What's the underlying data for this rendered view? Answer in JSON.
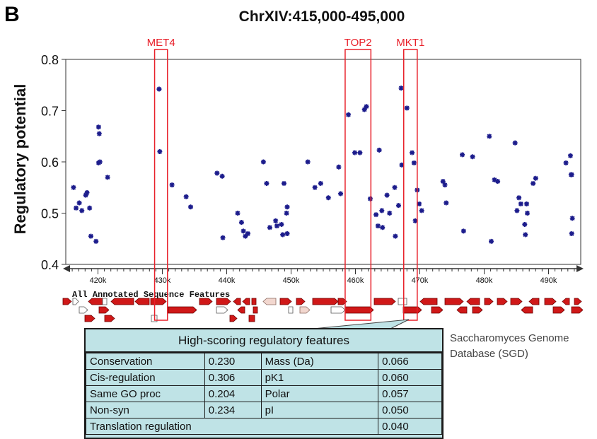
{
  "panel_label": "B",
  "sgd_label_lines": [
    "Saccharomyces Genome",
    "Database (SGD)"
  ],
  "feature_table": {
    "title": "High-scoring regulatory features",
    "rows": [
      [
        "Conservation",
        "0.230",
        "Mass (Da)",
        "0.066"
      ],
      [
        "Cis-regulation",
        "0.306",
        "pK1",
        "0.060"
      ],
      [
        "Same GO proc",
        "0.204",
        "Polar",
        "0.057"
      ],
      [
        "Non-syn",
        "0.234",
        "pI",
        "0.050"
      ]
    ],
    "last_row": {
      "label": "Translation regulation",
      "value": "0.040"
    }
  },
  "colors": {
    "points": "#1c1c8c",
    "highlight": "#e8202a",
    "feature_fill": "#d01818",
    "table_bg": "#bfe3e6"
  },
  "chart_data": {
    "type": "scatter",
    "title": "ChrXIV:415,000-495,000",
    "ylabel": "Regulatory potential",
    "xlabel": "",
    "xlim": [
      415000,
      495000
    ],
    "ylim": [
      0.4,
      0.8
    ],
    "yticks": [
      0.4,
      0.5,
      0.6,
      0.7,
      0.8
    ],
    "ytick_labels": [
      "0.4",
      "0.5",
      "0.6",
      "0.7",
      "0.8"
    ],
    "xticks": [
      420000,
      430000,
      440000,
      450000,
      460000,
      470000,
      480000,
      490000
    ],
    "xtick_labels": [
      "420k",
      "430k",
      "440k",
      "450k",
      "460k",
      "470k",
      "480k",
      "490k"
    ],
    "grid": false,
    "legend": "none",
    "track_title": "All Annotated Sequence Features",
    "highlighted_genes": [
      {
        "name": "MET4",
        "start": 428800,
        "end": 430800
      },
      {
        "name": "TOP2",
        "start": 458400,
        "end": 462400
      },
      {
        "name": "MKT1",
        "start": 467500,
        "end": 469600
      }
    ],
    "points": [
      [
        416200,
        0.55
      ],
      [
        416600,
        0.51
      ],
      [
        417100,
        0.52
      ],
      [
        417500,
        0.505
      ],
      [
        418100,
        0.535
      ],
      [
        418300,
        0.54
      ],
      [
        418700,
        0.51
      ],
      [
        418900,
        0.455
      ],
      [
        419700,
        0.445
      ],
      [
        420100,
        0.668
      ],
      [
        420200,
        0.655
      ],
      [
        420300,
        0.6
      ],
      [
        420100,
        0.598
      ],
      [
        421500,
        0.57
      ],
      [
        429500,
        0.742
      ],
      [
        429600,
        0.62
      ],
      [
        431500,
        0.555
      ],
      [
        433700,
        0.532
      ],
      [
        434400,
        0.512
      ],
      [
        438500,
        0.578
      ],
      [
        439300,
        0.572
      ],
      [
        439400,
        0.452
      ],
      [
        441700,
        0.5
      ],
      [
        442300,
        0.482
      ],
      [
        442600,
        0.465
      ],
      [
        442900,
        0.455
      ],
      [
        443300,
        0.46
      ],
      [
        445700,
        0.6
      ],
      [
        446200,
        0.558
      ],
      [
        446700,
        0.472
      ],
      [
        447600,
        0.485
      ],
      [
        447800,
        0.475
      ],
      [
        448500,
        0.478
      ],
      [
        448700,
        0.458
      ],
      [
        448900,
        0.558
      ],
      [
        449300,
        0.5
      ],
      [
        449400,
        0.512
      ],
      [
        449400,
        0.46
      ],
      [
        452600,
        0.6
      ],
      [
        453700,
        0.55
      ],
      [
        454600,
        0.558
      ],
      [
        455800,
        0.53
      ],
      [
        457400,
        0.59
      ],
      [
        457700,
        0.538
      ],
      [
        458900,
        0.692
      ],
      [
        459900,
        0.618
      ],
      [
        460700,
        0.618
      ],
      [
        461400,
        0.702
      ],
      [
        461700,
        0.708
      ],
      [
        462300,
        0.528
      ],
      [
        463200,
        0.497
      ],
      [
        463700,
        0.623
      ],
      [
        463500,
        0.475
      ],
      [
        464100,
        0.505
      ],
      [
        464200,
        0.472
      ],
      [
        464900,
        0.535
      ],
      [
        465300,
        0.5
      ],
      [
        466100,
        0.55
      ],
      [
        466200,
        0.455
      ],
      [
        466700,
        0.515
      ],
      [
        467100,
        0.744
      ],
      [
        467200,
        0.594
      ],
      [
        468000,
        0.705
      ],
      [
        468800,
        0.618
      ],
      [
        469100,
        0.598
      ],
      [
        469300,
        0.485
      ],
      [
        469600,
        0.545
      ],
      [
        469900,
        0.518
      ],
      [
        470300,
        0.505
      ],
      [
        473600,
        0.562
      ],
      [
        473900,
        0.555
      ],
      [
        474100,
        0.52
      ],
      [
        476600,
        0.614
      ],
      [
        476800,
        0.465
      ],
      [
        478200,
        0.61
      ],
      [
        480800,
        0.65
      ],
      [
        481100,
        0.445
      ],
      [
        481600,
        0.565
      ],
      [
        482100,
        0.562
      ],
      [
        484800,
        0.637
      ],
      [
        485100,
        0.505
      ],
      [
        485400,
        0.53
      ],
      [
        485700,
        0.518
      ],
      [
        486300,
        0.478
      ],
      [
        486400,
        0.458
      ],
      [
        486600,
        0.518
      ],
      [
        486700,
        0.5
      ],
      [
        487600,
        0.558
      ],
      [
        488000,
        0.568
      ],
      [
        492700,
        0.598
      ],
      [
        493400,
        0.612
      ],
      [
        493500,
        0.575
      ],
      [
        493600,
        0.575
      ],
      [
        493600,
        0.46
      ],
      [
        493700,
        0.49
      ]
    ]
  }
}
